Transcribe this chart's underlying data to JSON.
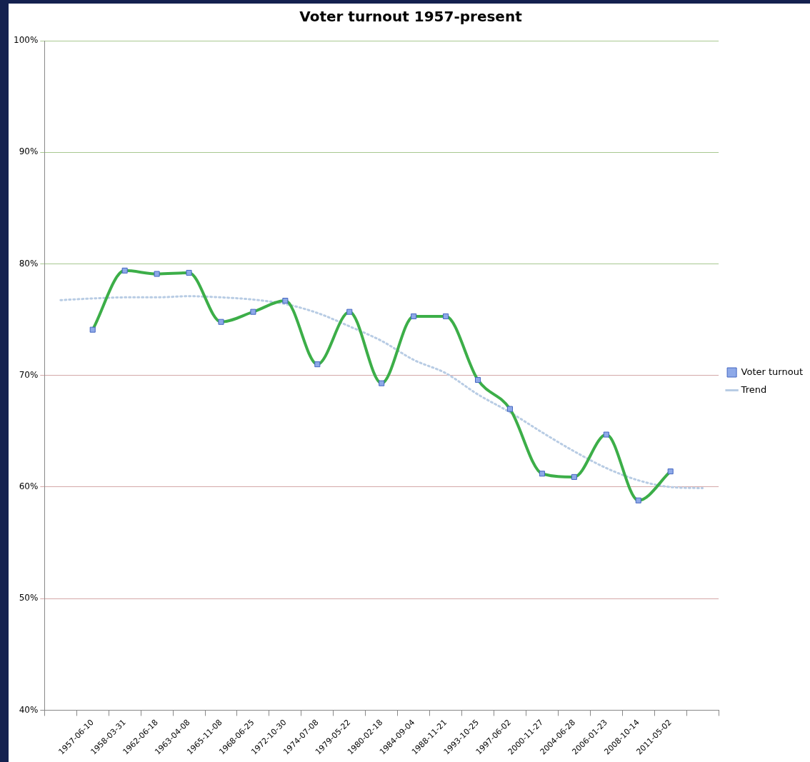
{
  "chart_data": {
    "type": "line",
    "title": "Voter turnout 1957-present",
    "categories": [
      null,
      "1957-06-10",
      "1958-03-31",
      "1962-06-18",
      "1963-04-08",
      "1965-11-08",
      "1968-06-25",
      "1972-10-30",
      "1974-07-08",
      "1979-05-22",
      "1980-02-18",
      "1984-09-04",
      "1988-11-21",
      "1993-10-25",
      "1997-06-02",
      "2000-11-27",
      "2004-06-28",
      "2006-01-23",
      "2008-10-14",
      "2011-05-02",
      null
    ],
    "series": [
      {
        "name": "Voter turnout",
        "color": "#3cae48",
        "marker": "square",
        "line_style": "solid",
        "values": [
          null,
          74.1,
          79.4,
          79.1,
          79.2,
          74.8,
          75.7,
          76.7,
          71.0,
          75.7,
          69.3,
          75.3,
          75.3,
          69.6,
          67.0,
          61.2,
          60.9,
          64.7,
          58.8,
          61.4,
          null
        ]
      },
      {
        "name": "Trend",
        "type": "line",
        "color": "#b8cce4",
        "marker": "none",
        "line_style": "dotted",
        "values": [
          76.75,
          76.9,
          77.0,
          77.0,
          77.1,
          77.0,
          76.8,
          76.4,
          75.6,
          74.4,
          73.1,
          71.4,
          70.2,
          68.3,
          66.7,
          64.9,
          63.2,
          61.7,
          60.6,
          60.0,
          59.9
        ]
      }
    ],
    "ylim": [
      40,
      100
    ],
    "yticks": [
      {
        "value": 40,
        "label": "40%"
      },
      {
        "value": 50,
        "label": "50%"
      },
      {
        "value": 60,
        "label": "60%"
      },
      {
        "value": 70,
        "label": "70%"
      },
      {
        "value": 80,
        "label": "80%"
      },
      {
        "value": 90,
        "label": "90%"
      },
      {
        "value": 100,
        "label": "100%"
      }
    ],
    "grid": "y",
    "legend": "right"
  }
}
